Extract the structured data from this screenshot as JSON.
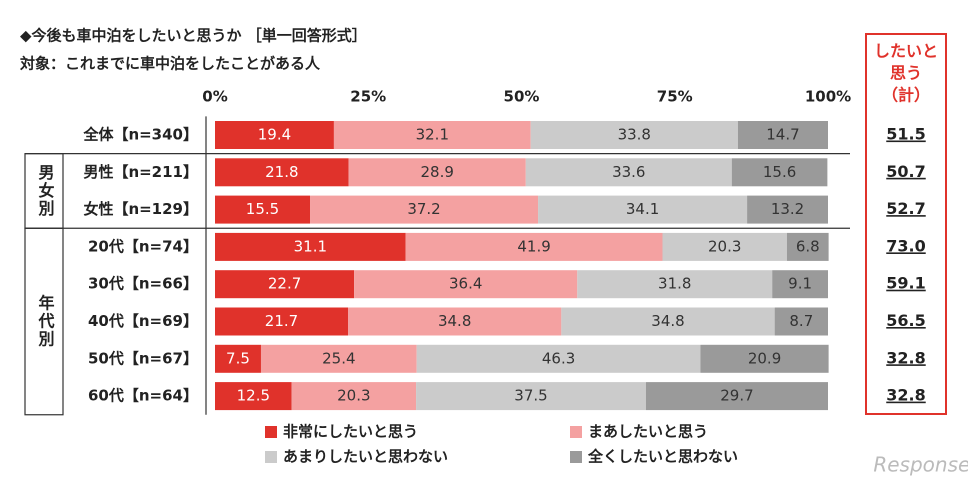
{
  "chart_data": {
    "type": "stacked-bar-horizontal",
    "title": "◆今後も車中泊をしたいと思うか ［単一回答形式］",
    "subtitle": "対象：これまでに車中泊をしたことがある人",
    "categories": [
      "全体【n=340】",
      "男性【n=211】",
      "女性【n=129】",
      "20代【n=74】",
      "30代【n=66】",
      "40代【n=69】",
      "50代【n=67】",
      "60代【n=64】"
    ],
    "category_groups": [
      null,
      "男女別",
      "男女別",
      "年代別",
      "年代別",
      "年代別",
      "年代別",
      "年代別"
    ],
    "series": [
      {
        "name": "非常にしたいと思う",
        "color": "#e0322b",
        "label_color": "#ffffff",
        "values": [
          19.4,
          21.8,
          15.5,
          31.1,
          22.7,
          21.7,
          7.5,
          12.5
        ]
      },
      {
        "name": "まあしたいと思う",
        "color": "#f4a1a1",
        "label_color": "#333333",
        "values": [
          32.1,
          28.9,
          37.2,
          41.9,
          36.4,
          34.8,
          25.4,
          20.3
        ]
      },
      {
        "name": "あまりしたいと思わない",
        "color": "#cbcbcb",
        "label_color": "#333333",
        "values": [
          33.8,
          33.6,
          34.1,
          20.3,
          31.8,
          34.8,
          46.3,
          37.5
        ]
      },
      {
        "name": "全くしたいと思わない",
        "color": "#9a9a9a",
        "label_color": "#333333",
        "values": [
          14.7,
          15.6,
          13.2,
          6.8,
          9.1,
          8.7,
          20.9,
          29.7
        ]
      }
    ],
    "xlim": [
      0,
      100
    ],
    "xticks": [
      {
        "value": 0,
        "label": "0%"
      },
      {
        "value": 25,
        "label": "25%"
      },
      {
        "value": 50,
        "label": "50%"
      },
      {
        "value": 75,
        "label": "75%"
      },
      {
        "value": 100,
        "label": "100%"
      }
    ],
    "totals": {
      "title": [
        "したいと",
        "思う",
        "（計）"
      ],
      "color": "#e0322b",
      "values": [
        51.5,
        50.7,
        52.7,
        73.0,
        59.1,
        56.5,
        32.8,
        32.8
      ],
      "value_labels": [
        "51.5",
        "50.7",
        "52.7",
        "73.0",
        "59.1",
        "56.5",
        "32.8",
        "32.8"
      ]
    },
    "watermark": "Response."
  }
}
